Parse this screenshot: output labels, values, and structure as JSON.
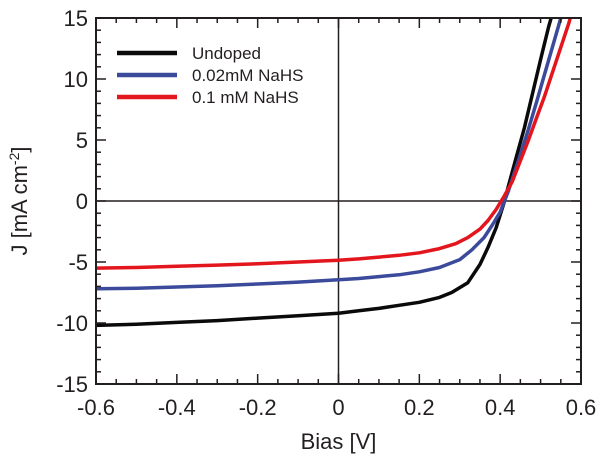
{
  "chart_data": {
    "type": "line",
    "title": "",
    "xlabel": "Bias [V]",
    "ylabel": "J [mA cm",
    "ylabel_sup": "-2",
    "ylabel_close": "]",
    "xlim": [
      -0.6,
      0.6
    ],
    "ylim": [
      -15,
      15
    ],
    "x_ticks": [
      -0.6,
      -0.4,
      -0.2,
      0,
      0.2,
      0.4,
      0.6
    ],
    "x_tick_labels": [
      "-0.6",
      "-0.4",
      "-0.2",
      "0",
      "0.2",
      "0.4",
      "0.6"
    ],
    "y_ticks": [
      -15,
      -10,
      -5,
      0,
      5,
      10,
      15
    ],
    "y_tick_labels": [
      "-15",
      "-10",
      "-5",
      "0",
      "5",
      "10",
      "15"
    ],
    "grid": false,
    "zero_lines": true,
    "legend_position": "top-left",
    "series": [
      {
        "name": "Undoped",
        "color": "#0a0a0a",
        "x": [
          -0.6,
          -0.5,
          -0.4,
          -0.3,
          -0.2,
          -0.1,
          0.0,
          0.05,
          0.1,
          0.15,
          0.2,
          0.25,
          0.28,
          0.32,
          0.35,
          0.37,
          0.39,
          0.41,
          0.42,
          0.44,
          0.46,
          0.48,
          0.5,
          0.52,
          0.535
        ],
        "y": [
          -10.2,
          -10.1,
          -9.95,
          -9.8,
          -9.6,
          -9.4,
          -9.2,
          -9.0,
          -8.8,
          -8.55,
          -8.3,
          -7.9,
          -7.5,
          -6.7,
          -5.2,
          -3.8,
          -2.2,
          -0.1,
          1.2,
          3.6,
          6.0,
          8.8,
          11.6,
          14.3,
          16.0
        ]
      },
      {
        "name": "0.02mM NaHS",
        "color": "#3b4a9b",
        "x": [
          -0.6,
          -0.5,
          -0.4,
          -0.3,
          -0.2,
          -0.1,
          0.0,
          0.05,
          0.1,
          0.15,
          0.2,
          0.25,
          0.3,
          0.33,
          0.36,
          0.38,
          0.4,
          0.42,
          0.43,
          0.45,
          0.47,
          0.49,
          0.51,
          0.53,
          0.55,
          0.56
        ],
        "y": [
          -7.2,
          -7.15,
          -7.05,
          -6.95,
          -6.8,
          -6.65,
          -6.45,
          -6.35,
          -6.2,
          -6.05,
          -5.8,
          -5.45,
          -4.8,
          -4.0,
          -3.0,
          -2.0,
          -0.9,
          0.8,
          1.8,
          3.8,
          5.9,
          8.1,
          10.4,
          12.7,
          15.0,
          16.2
        ]
      },
      {
        "name": "0.1 mM NaHS",
        "color": "#e3161e",
        "x": [
          -0.6,
          -0.5,
          -0.4,
          -0.3,
          -0.2,
          -0.1,
          0.0,
          0.05,
          0.1,
          0.15,
          0.2,
          0.25,
          0.29,
          0.32,
          0.35,
          0.37,
          0.39,
          0.41,
          0.43,
          0.45,
          0.47,
          0.49,
          0.51,
          0.53,
          0.55,
          0.57,
          0.58
        ],
        "y": [
          -5.5,
          -5.45,
          -5.35,
          -5.25,
          -5.15,
          -5.0,
          -4.85,
          -4.75,
          -4.6,
          -4.45,
          -4.25,
          -3.9,
          -3.5,
          -3.0,
          -2.3,
          -1.6,
          -0.7,
          0.4,
          1.6,
          3.3,
          5.0,
          6.8,
          8.6,
          10.6,
          12.6,
          14.6,
          15.8
        ]
      }
    ]
  }
}
